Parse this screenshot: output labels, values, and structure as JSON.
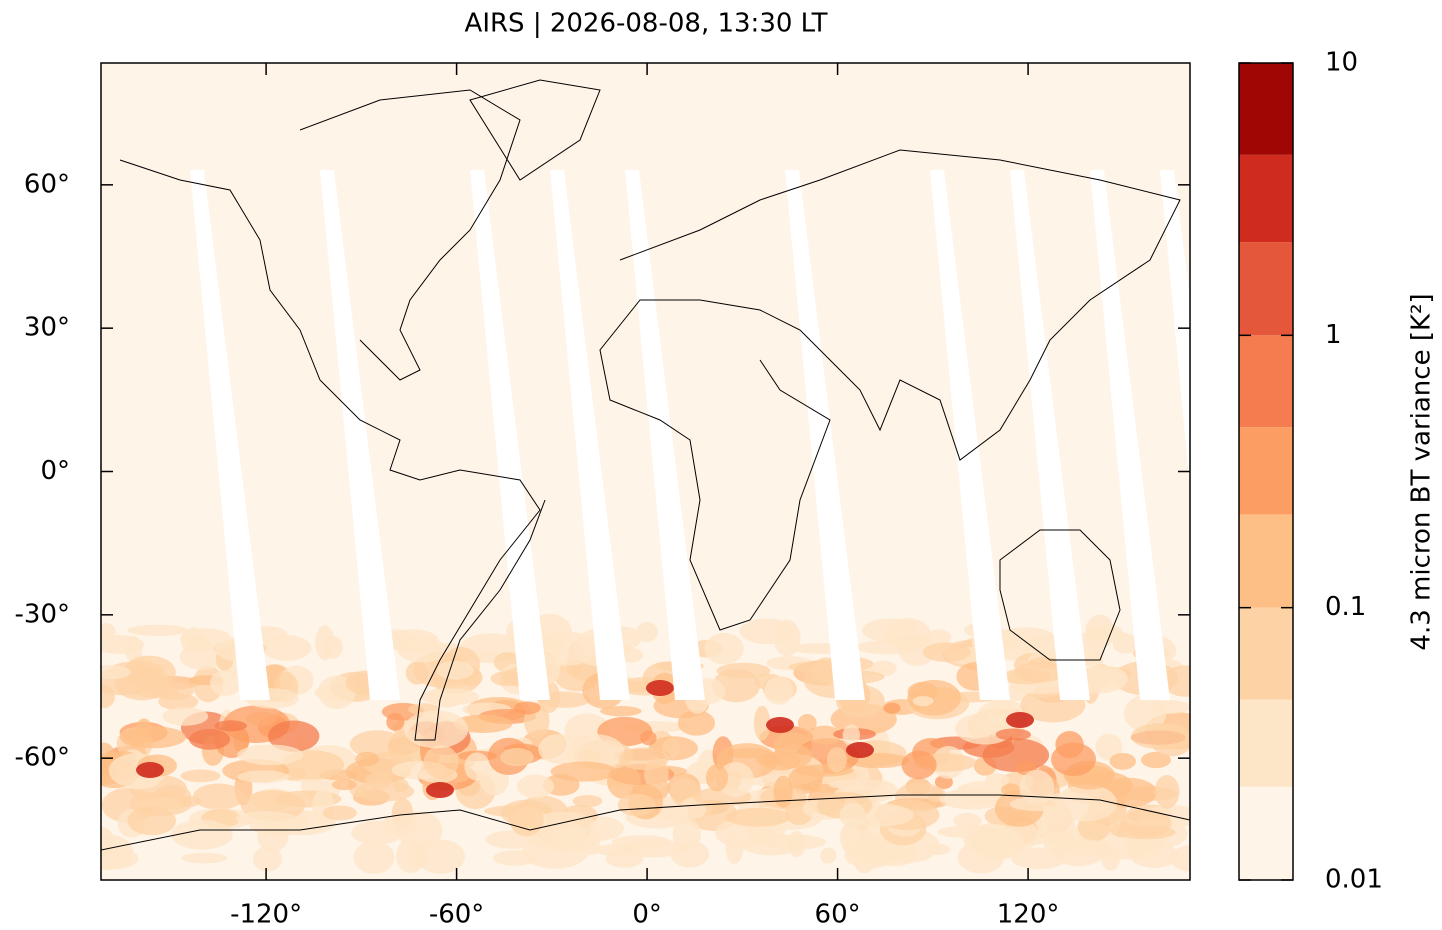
{
  "chart_data": {
    "type": "map",
    "title": "AIRS | 2026-08-08, 13:30 LT",
    "xlim": [
      -172,
      171
    ],
    "ylim": [
      -85.5,
      85.5
    ],
    "xticks": [
      {
        "value": -120,
        "label": "-120°"
      },
      {
        "value": -60,
        "label": "-60°"
      },
      {
        "value": 0,
        "label": "0°"
      },
      {
        "value": 60,
        "label": "60°"
      },
      {
        "value": 120,
        "label": "120°"
      }
    ],
    "yticks": [
      {
        "value": 60,
        "label": "60°"
      },
      {
        "value": 30,
        "label": "30°"
      },
      {
        "value": 0,
        "label": "0°"
      },
      {
        "value": -30,
        "label": "-30°"
      },
      {
        "value": -60,
        "label": "-60°"
      }
    ],
    "colorbar": {
      "label": "4.3 micron BT variance [K²]",
      "scale": "log",
      "levels": [
        0.01,
        0.022,
        0.046,
        0.1,
        0.22,
        0.46,
        1,
        2.2,
        4.6,
        10
      ],
      "colors": [
        "#fef4e8",
        "#fde5c8",
        "#fdd3a5",
        "#fdbf86",
        "#fc9d63",
        "#f47c4e",
        "#e5573b",
        "#cf2b1e",
        "#a00604"
      ],
      "ticks": [
        10,
        1,
        0.1,
        0.01
      ]
    }
  }
}
